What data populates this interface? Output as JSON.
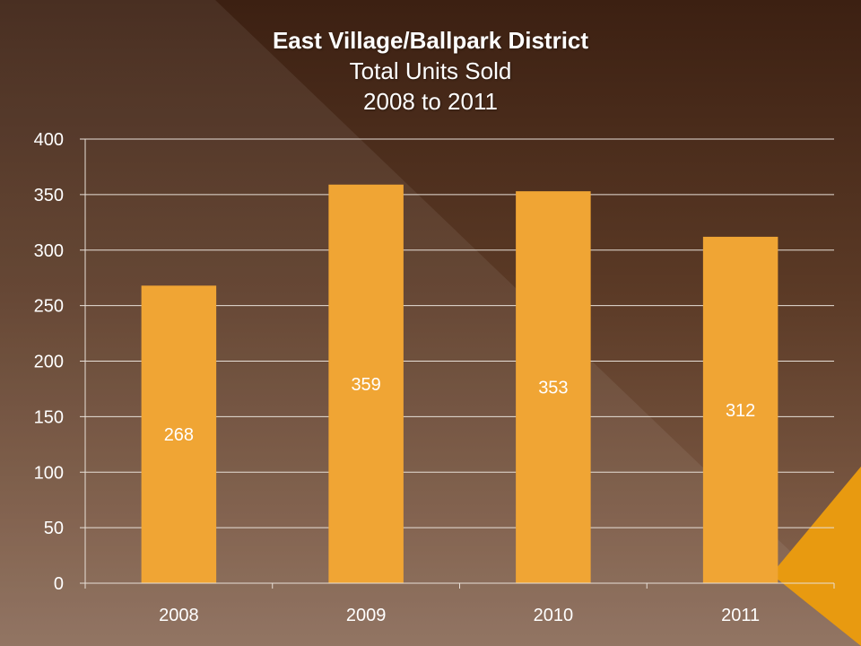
{
  "chart_data": {
    "type": "bar",
    "title": "East Village/Ballpark District",
    "subtitle": [
      "Total Units Sold",
      "2008 to 2011"
    ],
    "categories": [
      "2008",
      "2009",
      "2010",
      "2011"
    ],
    "values": [
      268,
      359,
      353,
      312
    ],
    "data_labels": [
      "268",
      "359",
      "353",
      "312"
    ],
    "ylim": [
      0,
      400
    ],
    "yticks": [
      0,
      50,
      100,
      150,
      200,
      250,
      300,
      350,
      400
    ],
    "ytick_labels": [
      "0",
      "50",
      "100",
      "150",
      "200",
      "250",
      "300",
      "350",
      "400"
    ],
    "xlabel": "",
    "ylabel": "",
    "grid": true,
    "legend": "none"
  },
  "colors": {
    "bar": "#f0a534",
    "grid": "#e8e0d8",
    "text": "#ffffff",
    "accent_triangle": "#e89a10"
  }
}
